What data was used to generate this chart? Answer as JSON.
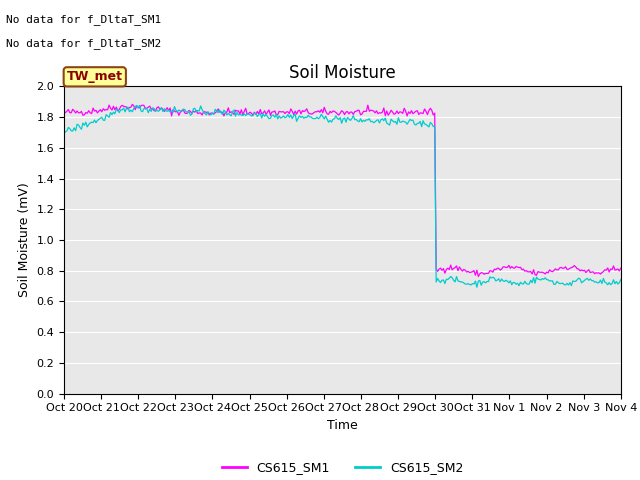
{
  "title": "Soil Moisture",
  "ylabel": "Soil Moisture (mV)",
  "xlabel": "Time",
  "ylim": [
    0.0,
    2.0
  ],
  "yticks": [
    0.0,
    0.2,
    0.4,
    0.6,
    0.8,
    1.0,
    1.2,
    1.4,
    1.6,
    1.8,
    2.0
  ],
  "xtick_labels": [
    "Oct 20",
    "Oct 21",
    "Oct 22",
    "Oct 23",
    "Oct 24",
    "Oct 25",
    "Oct 26",
    "Oct 27",
    "Oct 28",
    "Oct 29",
    "Oct 30",
    "Oct 31",
    "Nov 1",
    "Nov 2",
    "Nov 3",
    "Nov 4"
  ],
  "color_sm1": "#FF00FF",
  "color_sm2": "#00CCCC",
  "legend_labels": [
    "CS615_SM1",
    "CS615_SM2"
  ],
  "annotation_text1": "No data for f_DltaT_SM1",
  "annotation_text2": "No data for f_DltaT_SM2",
  "annotation_fontsize": 8,
  "legend_box_color": "#FFFF99",
  "legend_box_text": "TW_met",
  "legend_box_text_color": "#8B0000",
  "background_color": "#E8E8E8",
  "title_fontsize": 12,
  "axis_label_fontsize": 9,
  "tick_label_fontsize": 8
}
